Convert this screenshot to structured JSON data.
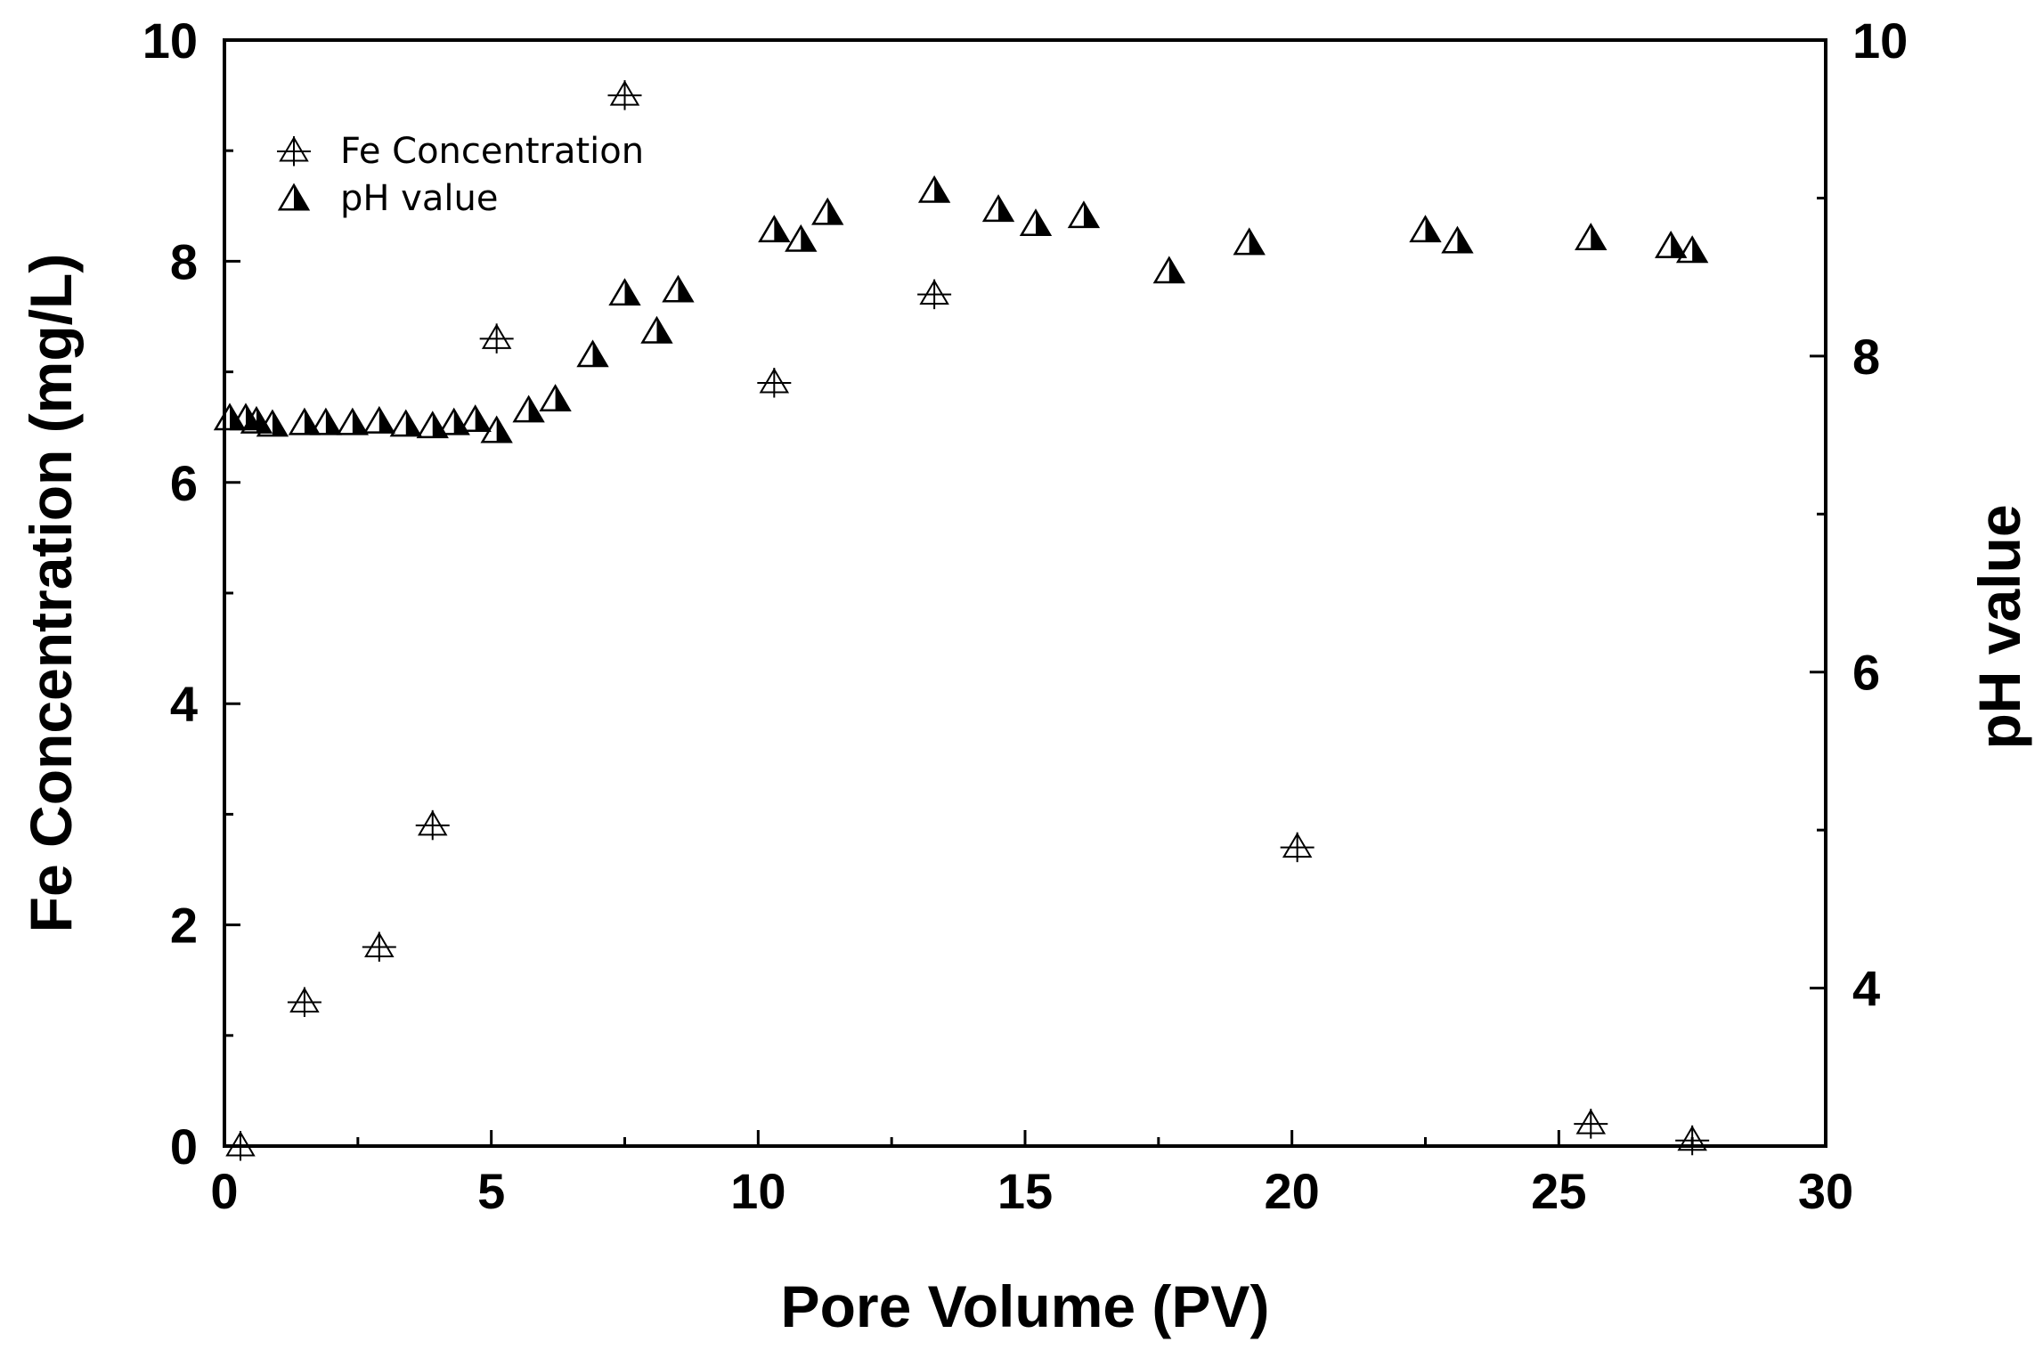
{
  "chart_data": {
    "type": "scatter",
    "title": "",
    "xlabel": "Pore Volume (PV)",
    "ylabel_left": "Fe Concentration (mg/L)",
    "ylabel_right": "pH value",
    "xlim": [
      0,
      30
    ],
    "ylim_left": [
      0,
      10
    ],
    "ylim_right": [
      3,
      10
    ],
    "x_ticks": [
      "0",
      "5",
      "10",
      "15",
      "20",
      "25",
      "30"
    ],
    "y_left_ticks": [
      "0",
      "2",
      "4",
      "6",
      "8",
      "10"
    ],
    "y_right_ticks": [
      "4",
      "6",
      "8",
      "10"
    ],
    "legend_position": "top-left",
    "grid": false,
    "series": [
      {
        "name": "Fe Concentration",
        "axis": "left",
        "marker": "open-triangle-cross",
        "points": [
          {
            "x": 0.3,
            "y": 0.0
          },
          {
            "x": 1.5,
            "y": 1.3
          },
          {
            "x": 2.9,
            "y": 1.8
          },
          {
            "x": 3.9,
            "y": 2.9
          },
          {
            "x": 5.1,
            "y": 7.3
          },
          {
            "x": 7.5,
            "y": 9.5
          },
          {
            "x": 10.3,
            "y": 6.9
          },
          {
            "x": 13.3,
            "y": 7.7
          },
          {
            "x": 20.1,
            "y": 2.7
          },
          {
            "x": 25.6,
            "y": 0.2
          },
          {
            "x": 27.5,
            "y": 0.05
          }
        ]
      },
      {
        "name": "pH value",
        "axis": "right",
        "marker": "half-filled-triangle",
        "points": [
          {
            "x": 0.1,
            "y": 7.6
          },
          {
            "x": 0.4,
            "y": 7.6
          },
          {
            "x": 0.6,
            "y": 7.58
          },
          {
            "x": 0.9,
            "y": 7.56
          },
          {
            "x": 1.5,
            "y": 7.57
          },
          {
            "x": 1.9,
            "y": 7.57
          },
          {
            "x": 2.4,
            "y": 7.57
          },
          {
            "x": 2.9,
            "y": 7.58
          },
          {
            "x": 3.4,
            "y": 7.56
          },
          {
            "x": 3.9,
            "y": 7.55
          },
          {
            "x": 4.3,
            "y": 7.57
          },
          {
            "x": 4.7,
            "y": 7.59
          },
          {
            "x": 5.1,
            "y": 7.52
          },
          {
            "x": 5.7,
            "y": 7.65
          },
          {
            "x": 6.2,
            "y": 7.72
          },
          {
            "x": 6.9,
            "y": 8.0
          },
          {
            "x": 7.5,
            "y": 8.39
          },
          {
            "x": 8.1,
            "y": 8.15
          },
          {
            "x": 8.5,
            "y": 8.41
          },
          {
            "x": 10.3,
            "y": 8.79
          },
          {
            "x": 10.8,
            "y": 8.73
          },
          {
            "x": 11.3,
            "y": 8.9
          },
          {
            "x": 13.3,
            "y": 9.04
          },
          {
            "x": 14.5,
            "y": 8.92
          },
          {
            "x": 15.2,
            "y": 8.83
          },
          {
            "x": 16.1,
            "y": 8.88
          },
          {
            "x": 17.7,
            "y": 8.53
          },
          {
            "x": 19.2,
            "y": 8.71
          },
          {
            "x": 22.5,
            "y": 8.79
          },
          {
            "x": 23.1,
            "y": 8.72
          },
          {
            "x": 25.6,
            "y": 8.74
          },
          {
            "x": 27.1,
            "y": 8.69
          },
          {
            "x": 27.5,
            "y": 8.66
          }
        ]
      }
    ]
  }
}
